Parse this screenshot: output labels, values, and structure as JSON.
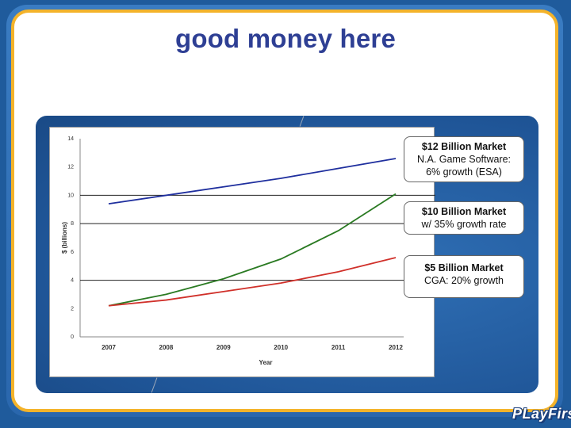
{
  "slide": {
    "title": "good money here",
    "logo": "PLayFirst"
  },
  "callouts": [
    {
      "strong": "$12 Billion Market",
      "lines": [
        "N.A. Game Software:",
        "6% growth (ESA)"
      ]
    },
    {
      "strong": "$10 Billion Market",
      "lines": [
        "w/ 35% growth rate"
      ]
    },
    {
      "strong": "$5 Billion Market",
      "lines": [
        "CGA: 20% growth"
      ]
    }
  ],
  "colors": {
    "title": "#2e3f94",
    "frame_border": "#f4b32a",
    "series_blue": "#1f2f9e",
    "series_green": "#2a7a22",
    "series_red": "#d0302a"
  },
  "chart_data": {
    "type": "line",
    "x": [
      2007,
      2008,
      2009,
      2010,
      2011,
      2012
    ],
    "xlabel": "Year",
    "ylabel": "$ (billions)",
    "ylim": [
      0,
      14
    ],
    "yticks": [
      0,
      2,
      4,
      6,
      8,
      10,
      12,
      14
    ],
    "gridlines": [
      4,
      8,
      10
    ],
    "series": [
      {
        "key": "blue",
        "values": [
          9.4,
          10.0,
          10.6,
          11.2,
          11.9,
          12.6
        ]
      },
      {
        "key": "green",
        "values": [
          2.2,
          3.0,
          4.1,
          5.5,
          7.5,
          10.1
        ]
      },
      {
        "key": "red",
        "values": [
          2.2,
          2.6,
          3.2,
          3.8,
          4.6,
          5.6
        ]
      }
    ]
  }
}
